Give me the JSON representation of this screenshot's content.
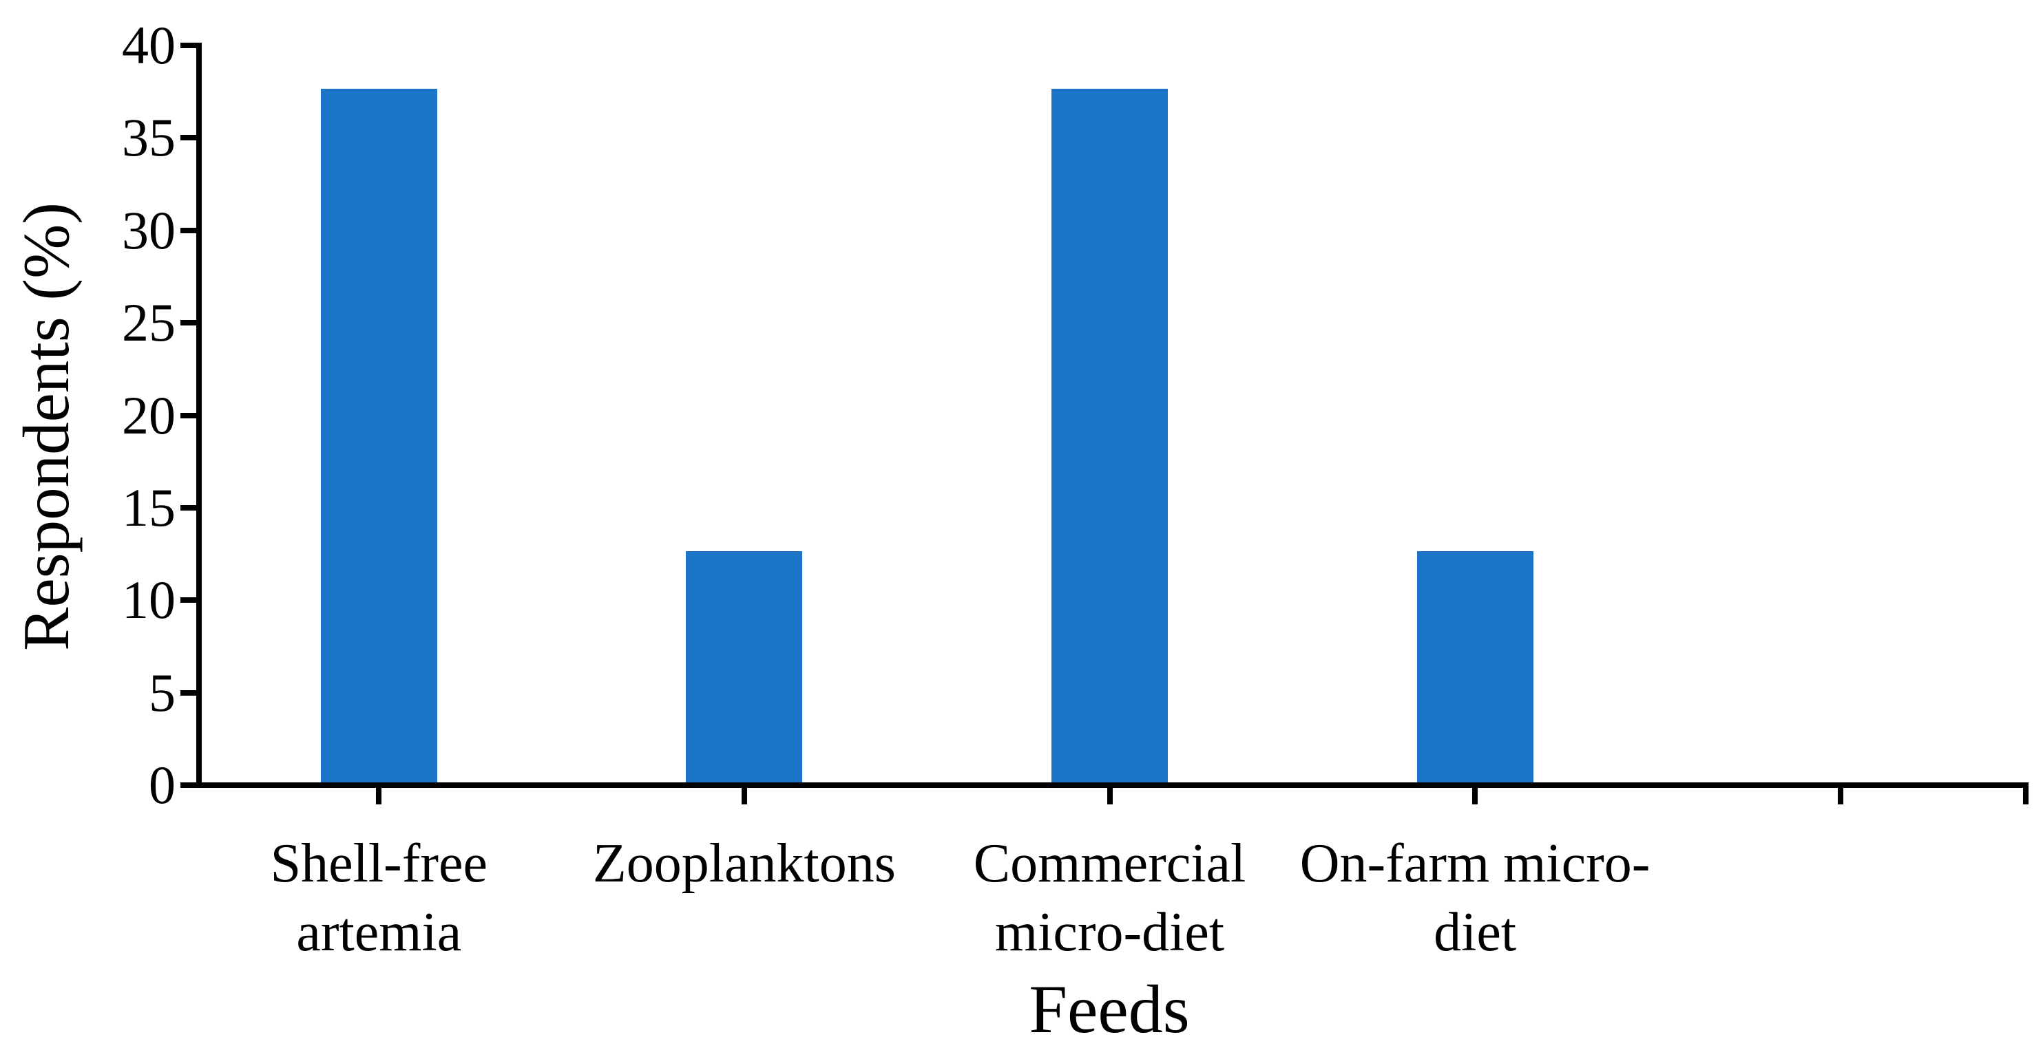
{
  "chart_data": {
    "type": "bar",
    "title": "",
    "xlabel": "Feeds",
    "ylabel": "Respondents (%)",
    "categories": [
      "Shell-free artemia",
      "Zooplanktons",
      "Commercial micro-diet",
      "On-farm micro-diet"
    ],
    "category_label_lines": [
      [
        "Shell-free",
        "artemia"
      ],
      [
        "Zooplanktons"
      ],
      [
        "Commercial",
        "micro-diet"
      ],
      [
        "On-farm micro-",
        "diet"
      ]
    ],
    "values": [
      37.5,
      12.5,
      37.5,
      12.5
    ],
    "y_axis": {
      "min": 0,
      "max": 40,
      "step": 5,
      "tick_labels": [
        "0",
        "5",
        "10",
        "15",
        "20",
        "25",
        "30",
        "35",
        "40"
      ]
    },
    "n_category_slots": 5,
    "grid": false,
    "legend": false,
    "bar_color": "#1B74C8",
    "axis_color": "#000000",
    "background": "#FFFFFF"
  }
}
